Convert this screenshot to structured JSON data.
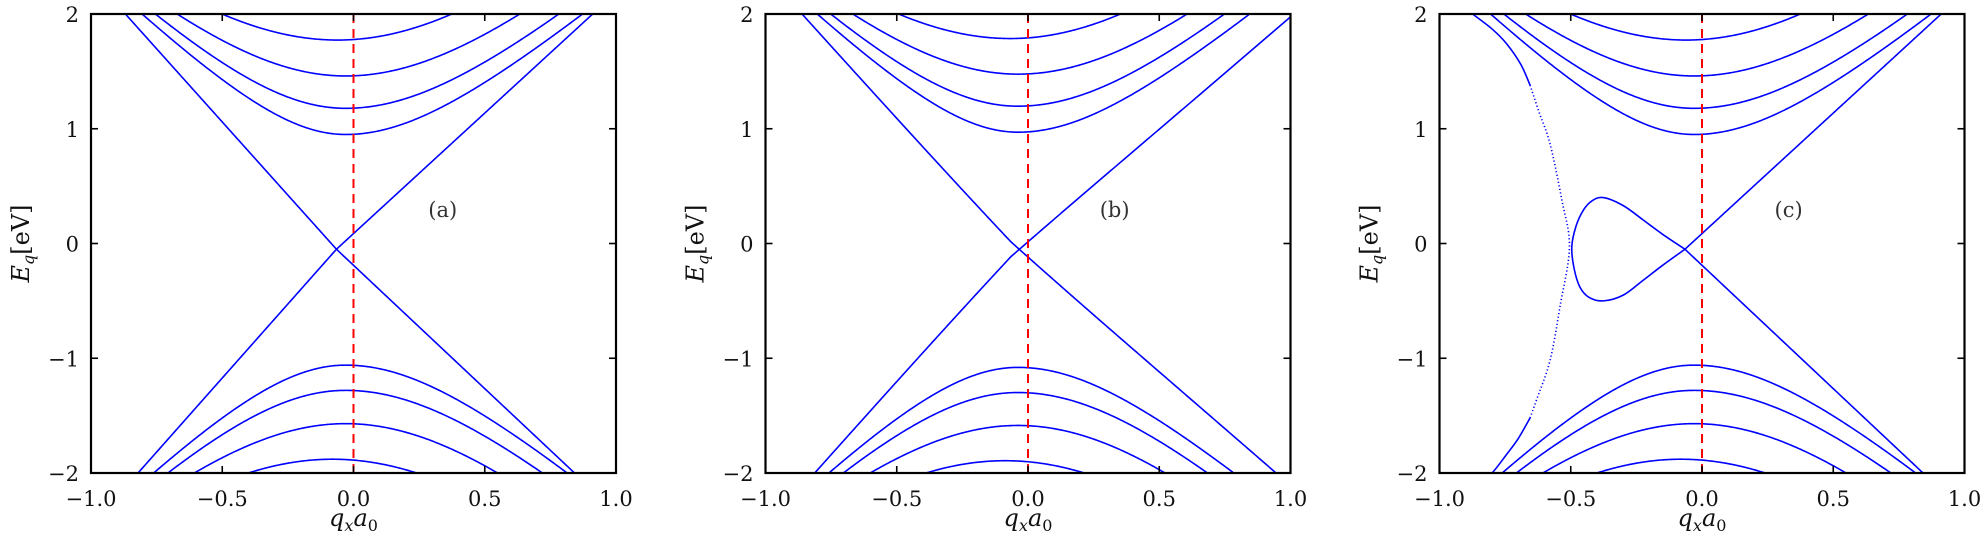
{
  "chart_data": [
    {
      "type": "line",
      "panel_label": "(a)",
      "annotation_at": [
        0.34,
        0.3
      ],
      "xlim": [
        -1.0,
        1.0
      ],
      "ylim": [
        -2,
        2
      ],
      "xticks": [
        -1.0,
        -0.5,
        0.0,
        0.5,
        1.0
      ],
      "xtick_labels": [
        "−1.0",
        "−0.5",
        "0.0",
        "0.5",
        "1.0"
      ],
      "yticks": [
        -2,
        -1,
        0,
        1,
        2
      ],
      "ytick_labels": [
        "−2",
        "−1",
        "0",
        "1",
        "2"
      ],
      "xlabel": {
        "main": "q",
        "sub": "x",
        "main2": "a",
        "sub2": "0"
      },
      "ylabel": {
        "main": "E",
        "sub": "q",
        "unit": "[eV]"
      },
      "vline": {
        "x": 0.0,
        "color": "#ff0000",
        "style": "dashed"
      },
      "line_color": "#0000ff",
      "lines": [
        {
          "name": "ascending-dirac-line",
          "cross": [
            -0.065,
            -0.05
          ],
          "slope_left": 2.58,
          "slope_right": 2.1
        },
        {
          "name": "descending-dirac-line",
          "cross": [
            -0.065,
            -0.05
          ],
          "slope_left": -2.55,
          "slope_right": -2.15
        }
      ],
      "conduction_bands": [
        {
          "min": 0.95,
          "q0": -0.03,
          "v_left": 2.27,
          "v_right": 1.95
        },
        {
          "min": 1.178,
          "q0": -0.03,
          "v_left": 2.23,
          "v_right": 1.99
        },
        {
          "min": 1.46,
          "q0": -0.03,
          "v_left": 2.13,
          "v_right": 2.06
        },
        {
          "min": 1.773,
          "q0": -0.06,
          "v_left": 2.1,
          "v_right": 2.13
        }
      ],
      "valence_bands": [
        {
          "max": -1.06,
          "q0": -0.03,
          "v_left": 2.32,
          "v_right": 2.01
        },
        {
          "max": -1.28,
          "q0": -0.03,
          "v_left": 2.27,
          "v_right": 2.05
        },
        {
          "max": -1.57,
          "q0": -0.03,
          "v_left": 2.15,
          "v_right": 2.14
        },
        {
          "max": -1.88,
          "q0": -0.08,
          "v_left": 2.13,
          "v_right": 2.13
        }
      ],
      "coupling": 0
    },
    {
      "type": "line",
      "panel_label": "(b)",
      "annotation_at": [
        0.33,
        0.3
      ],
      "xlim": [
        -1.0,
        1.0
      ],
      "ylim": [
        -2,
        2
      ],
      "xticks": [
        -1.0,
        -0.5,
        0.0,
        0.5,
        1.0
      ],
      "xtick_labels": [
        "−1.0",
        "−0.5",
        "0.0",
        "0.5",
        "1.0"
      ],
      "yticks": [
        -2,
        -1,
        0,
        1,
        2
      ],
      "ytick_labels": [
        "−2",
        "−1",
        "0",
        "1",
        "2"
      ],
      "xlabel": {
        "main": "q",
        "sub": "x",
        "main2": "a",
        "sub2": "0"
      },
      "ylabel": {
        "main": "E",
        "sub": "q",
        "unit": "[eV]"
      },
      "vline": {
        "x": 0.0,
        "color": "#ff0000",
        "style": "dashed"
      },
      "line_color": "#0000ff",
      "lines": [
        {
          "name": "ascending-dirac-line",
          "cross": [
            -0.065,
            -0.05
          ],
          "slope_left": 2.58,
          "slope_right": 2.1
        },
        {
          "name": "descending-dirac-line",
          "cross": [
            -0.065,
            -0.05
          ],
          "slope_left": -2.55,
          "slope_right": -2.15
        }
      ],
      "conduction_bands": [
        {
          "min": 0.95,
          "q0": -0.03,
          "v_left": 2.27,
          "v_right": 1.95
        },
        {
          "min": 1.178,
          "q0": -0.03,
          "v_left": 2.23,
          "v_right": 1.99
        },
        {
          "min": 1.46,
          "q0": -0.03,
          "v_left": 2.13,
          "v_right": 2.06
        },
        {
          "min": 1.773,
          "q0": -0.06,
          "v_left": 2.1,
          "v_right": 2.13
        }
      ],
      "valence_bands": [
        {
          "max": -1.06,
          "q0": -0.03,
          "v_left": 2.32,
          "v_right": 2.01
        },
        {
          "max": -1.28,
          "q0": -0.03,
          "v_left": 2.27,
          "v_right": 2.05
        },
        {
          "max": -1.57,
          "q0": -0.03,
          "v_left": 2.15,
          "v_right": 2.14
        },
        {
          "max": -1.88,
          "q0": -0.08,
          "v_left": 2.13,
          "v_right": 2.13
        }
      ],
      "coupling": 0.15
    },
    {
      "type": "line",
      "panel_label": "(c)",
      "annotation_at": [
        0.33,
        0.3
      ],
      "xlim": [
        -1.0,
        1.0
      ],
      "ylim": [
        -2,
        2
      ],
      "xticks": [
        -1.0,
        -0.5,
        0.0,
        0.5,
        1.0
      ],
      "xtick_labels": [
        "−1.0",
        "−0.5",
        "0.0",
        "0.5",
        "1.0"
      ],
      "yticks": [
        -2,
        -1,
        0,
        1,
        2
      ],
      "ytick_labels": [
        "−2",
        "−1",
        "0",
        "1",
        "2"
      ],
      "xlabel": {
        "main": "q",
        "sub": "x",
        "main2": "a",
        "sub2": "0"
      },
      "ylabel": {
        "main": "E",
        "sub": "q",
        "unit": "[eV]"
      },
      "vline": {
        "x": 0.0,
        "color": "#ff0000",
        "style": "dashed"
      },
      "line_color": "#0000ff",
      "lines": [
        {
          "name": "ascending-dirac-line",
          "cross": [
            -0.065,
            -0.05
          ],
          "slope_left": 2.58,
          "slope_right": 2.1,
          "qmin": -0.065
        },
        {
          "name": "descending-dirac-line",
          "cross": [
            -0.065,
            -0.05
          ],
          "slope_left": -2.55,
          "slope_right": -2.15,
          "qmin": -0.065
        }
      ],
      "conduction_bands": [
        {
          "min": 0.95,
          "q0": -0.03,
          "v_left": 2.27,
          "v_right": 1.95
        },
        {
          "min": 1.178,
          "q0": -0.03,
          "v_left": 2.23,
          "v_right": 1.99
        },
        {
          "min": 1.46,
          "q0": -0.03,
          "v_left": 2.13,
          "v_right": 2.06
        },
        {
          "min": 1.773,
          "q0": -0.06,
          "v_left": 2.1,
          "v_right": 2.13
        }
      ],
      "valence_bands": [
        {
          "max": -1.06,
          "q0": -0.03,
          "v_left": 2.32,
          "v_right": 2.01
        },
        {
          "max": -1.28,
          "q0": -0.03,
          "v_left": 2.27,
          "v_right": 2.05
        },
        {
          "max": -1.57,
          "q0": -0.03,
          "v_left": 2.15,
          "v_right": 2.14
        },
        {
          "max": -1.88,
          "q0": -0.08,
          "v_left": 2.13,
          "v_right": 2.13
        }
      ],
      "coupling": 0,
      "extra_series": [
        {
          "name": "loop",
          "style": "solid",
          "points": [
            [
              -0.065,
              -0.05
            ],
            [
              -0.15,
              0.08
            ],
            [
              -0.224,
              0.205
            ],
            [
              -0.3,
              0.33
            ],
            [
              -0.376,
              0.4
            ],
            [
              -0.42,
              0.37
            ],
            [
              -0.452,
              0.29
            ],
            [
              -0.48,
              0.15
            ],
            [
              -0.496,
              -0.03
            ],
            [
              -0.487,
              -0.22
            ],
            [
              -0.465,
              -0.38
            ],
            [
              -0.43,
              -0.47
            ],
            [
              -0.376,
              -0.5
            ],
            [
              -0.3,
              -0.45
            ],
            [
              -0.224,
              -0.32
            ],
            [
              -0.15,
              -0.19
            ],
            [
              -0.065,
              -0.05
            ]
          ]
        },
        {
          "name": "upper-left-branch",
          "style": "solid",
          "points": [
            [
              -0.874,
              2.0
            ],
            [
              -0.8,
              1.87
            ],
            [
              -0.744,
              1.74
            ],
            [
              -0.69,
              1.56
            ],
            [
              -0.655,
              1.38
            ]
          ]
        },
        {
          "name": "dotted-branch",
          "style": "dotted",
          "points": [
            [
              -0.655,
              1.38
            ],
            [
              -0.62,
              1.14
            ],
            [
              -0.579,
              0.87
            ],
            [
              -0.534,
              0.38
            ],
            [
              -0.505,
              -0.03
            ],
            [
              -0.541,
              -0.55
            ],
            [
              -0.579,
              -1.02
            ],
            [
              -0.63,
              -1.36
            ],
            [
              -0.655,
              -1.52
            ]
          ]
        },
        {
          "name": "lower-left-branch",
          "style": "solid",
          "points": [
            [
              -0.655,
              -1.52
            ],
            [
              -0.7,
              -1.7
            ],
            [
              -0.745,
              -1.84
            ],
            [
              -0.8,
              -2.0
            ],
            [
              -0.82,
              -2.05
            ]
          ]
        }
      ]
    }
  ]
}
